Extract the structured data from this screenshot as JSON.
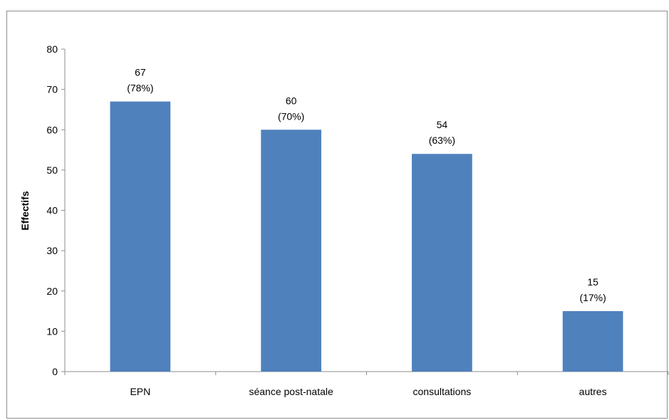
{
  "chart_data": {
    "type": "bar",
    "categories": [
      "EPN",
      "séance post-natale",
      "consultations",
      "autres"
    ],
    "values": [
      67,
      60,
      54,
      15
    ],
    "data_labels": [
      [
        "67",
        "(78%)"
      ],
      [
        "60",
        "(70%)"
      ],
      [
        "54",
        "(63%)"
      ],
      [
        "15",
        "(17%)"
      ]
    ],
    "ylabel": "Effectifs",
    "xlabel": "",
    "ylim": [
      0,
      80
    ],
    "yticks": [
      "0",
      "10",
      "20",
      "30",
      "40",
      "50",
      "60",
      "70",
      "80"
    ],
    "bar_color": "#4f81bd",
    "grid": false
  }
}
